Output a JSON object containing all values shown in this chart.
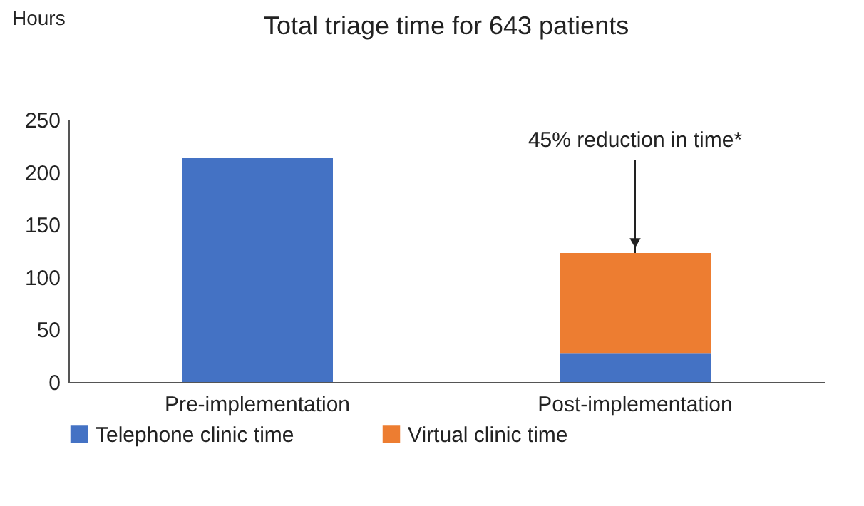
{
  "chart_data": {
    "type": "bar",
    "title": "Total triage time for 643 patients",
    "ylabel": "Hours",
    "categories": [
      "Pre-implementation",
      "Post-implementation"
    ],
    "series": [
      {
        "name": "Telephone clinic time",
        "color": "#4472c4",
        "values": [
          214,
          27
        ]
      },
      {
        "name": "Virtual clinic time",
        "color": "#ed7d31",
        "values": [
          null,
          96
        ]
      }
    ],
    "stacked": true,
    "ylim": [
      0,
      250
    ],
    "yticks": [
      0,
      50,
      100,
      150,
      200,
      250
    ],
    "grid": false,
    "legend": "bottom",
    "annotations": [
      {
        "text": "45% reduction in time*",
        "x": "Post-implementation",
        "y": 123
      }
    ]
  }
}
